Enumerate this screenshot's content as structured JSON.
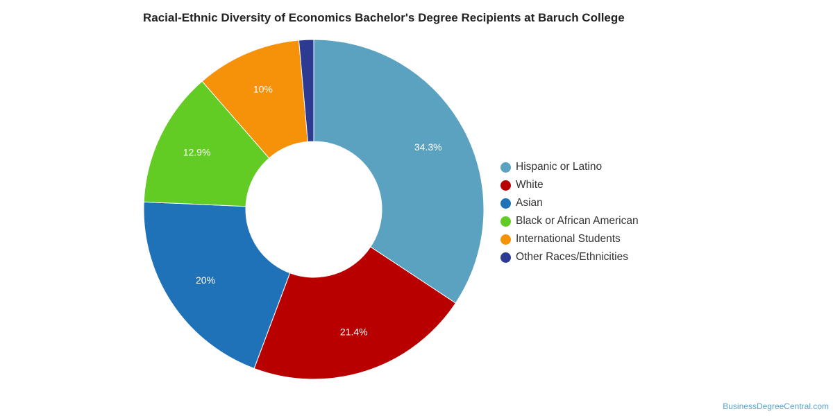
{
  "chart_data": {
    "type": "pie",
    "title": "Racial-Ethnic Diversity of Economics Bachelor's Degree Recipients at Baruch College",
    "donut": true,
    "legend_position": "right",
    "slices": [
      {
        "name": "Hispanic or Latino",
        "value": 34.3,
        "label": "34.3%",
        "color": "#5ba2c0"
      },
      {
        "name": "White",
        "value": 21.4,
        "label": "21.4%",
        "color": "#b80000"
      },
      {
        "name": "Asian",
        "value": 20.0,
        "label": "20%",
        "color": "#1f72b8"
      },
      {
        "name": "Black or African American",
        "value": 12.9,
        "label": "12.9%",
        "color": "#62cc25"
      },
      {
        "name": "International Students",
        "value": 10.0,
        "label": "10%",
        "color": "#f5920a"
      },
      {
        "name": "Other Races/Ethnicities",
        "value": 1.4,
        "label": "",
        "color": "#2c3a91"
      }
    ]
  },
  "source": "BusinessDegreeCentral.com"
}
